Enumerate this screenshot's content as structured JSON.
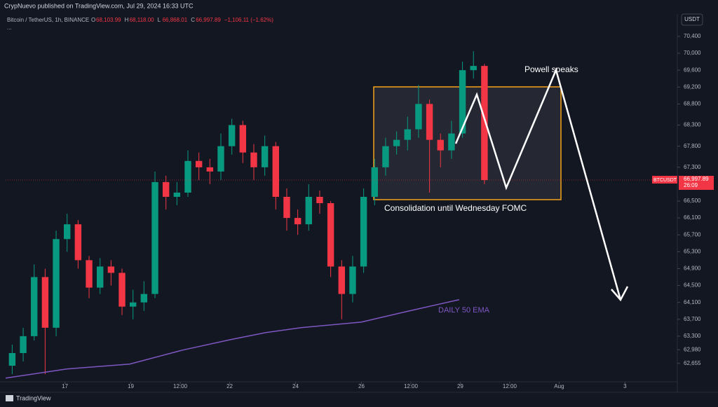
{
  "header": {
    "publisher": "CrypNuevo published on TradingView.com, Jul 29, 2024 16:33 UTC",
    "symbol": "Bitcoin / TetherUS, 1h, BINANCE",
    "ohlc": [
      {
        "key": "O",
        "text": "68,103.99"
      },
      {
        "key": "H",
        "text": "68,118.00"
      },
      {
        "key": "L",
        "text": "66,868.01"
      },
      {
        "key": "C",
        "text": "66,997.89"
      }
    ],
    "change": "−1,106.11 (−1.62%)",
    "more": "..."
  },
  "footer": {
    "brand": "TradingView"
  },
  "chart_data": {
    "type": "candlestick",
    "currency": "USDT",
    "up_color": "#089981",
    "down_color": "#f23645",
    "open": [
      62600,
      62900,
      63300,
      64700,
      63500,
      65600,
      65950,
      65100,
      64450,
      64950,
      64800,
      64000,
      64100,
      64300,
      66950,
      66600,
      66700,
      67450,
      67300,
      67200,
      67800,
      68300,
      67650,
      67300,
      67800,
      66600,
      66100,
      65950,
      66600,
      66450,
      64950,
      64300,
      64950,
      66600,
      67300,
      67800,
      67950,
      68200,
      68800,
      67950,
      67700,
      68100,
      69600,
      69700
    ],
    "high": [
      63100,
      63500,
      65000,
      64900,
      65800,
      66200,
      66050,
      65200,
      65150,
      65100,
      64900,
      64400,
      64600,
      67200,
      67100,
      66950,
      67700,
      67650,
      67500,
      68100,
      68450,
      68400,
      67850,
      68050,
      67900,
      66800,
      66300,
      66900,
      66750,
      66500,
      65100,
      65200,
      66800,
      67500,
      68000,
      68150,
      68500,
      69250,
      68900,
      68100,
      68400,
      69800,
      70050,
      69750
    ],
    "low": [
      62400,
      62700,
      63200,
      62400,
      63300,
      65300,
      64900,
      64200,
      64300,
      64500,
      63800,
      63700,
      63900,
      64200,
      66300,
      66400,
      66600,
      67000,
      66900,
      67000,
      67600,
      67400,
      67000,
      67100,
      66300,
      65800,
      65700,
      65800,
      66200,
      64700,
      63700,
      64100,
      64800,
      66400,
      67100,
      67600,
      67700,
      68000,
      66700,
      67300,
      67500,
      68000,
      69400,
      66900
    ],
    "close": [
      62900,
      63300,
      64700,
      63500,
      65600,
      65950,
      65100,
      64450,
      64950,
      64800,
      64000,
      64100,
      64300,
      66950,
      66600,
      66700,
      67450,
      67300,
      67200,
      67800,
      68300,
      67650,
      67300,
      67800,
      66600,
      66100,
      65950,
      66600,
      66450,
      64950,
      64300,
      64950,
      66600,
      67300,
      67800,
      67950,
      68200,
      68800,
      67950,
      67700,
      68100,
      69600,
      69700,
      66997.89
    ],
    "last_price": {
      "symbol": "BTCUSDT",
      "label": "66,997.89",
      "countdown": "26:09"
    },
    "series": [
      {
        "name": "DAILY 50 EMA",
        "color": "#7e57c2",
        "x": [
          -0.6,
          4.95,
          10.7,
          15.5,
          19.9,
          23.1,
          26.3,
          31.8,
          35.9,
          40.7
        ],
        "values": [
          62307,
          62523,
          62639,
          62970,
          63219,
          63385,
          63501,
          63634,
          63883,
          64165
        ]
      }
    ],
    "annotations": {
      "box_note": "Consolidation until Wednesday FOMC",
      "event": "Powell speaks"
    },
    "xlim": [
      -0.6,
      60.5
    ],
    "xticks": [
      {
        "value": 4.8,
        "label": "17"
      },
      {
        "value": 10.8,
        "label": "19"
      },
      {
        "value": 15.3,
        "label": "12:00"
      },
      {
        "value": 19.8,
        "label": "22"
      },
      {
        "value": 25.8,
        "label": "24"
      },
      {
        "value": 31.8,
        "label": "26"
      },
      {
        "value": 36.3,
        "label": "12:00"
      },
      {
        "value": 40.8,
        "label": "29"
      },
      {
        "value": 45.3,
        "label": "12:00"
      },
      {
        "value": 49.8,
        "label": "Aug"
      },
      {
        "value": 55.8,
        "label": "3"
      }
    ],
    "ylim": [
      62220,
      70930
    ],
    "yticks": [
      {
        "value": 70400,
        "label": "70,400"
      },
      {
        "value": 70000,
        "label": "70,000"
      },
      {
        "value": 69600,
        "label": "69,600"
      },
      {
        "value": 69200,
        "label": "69,200"
      },
      {
        "value": 68800,
        "label": "68,800"
      },
      {
        "value": 68300,
        "label": "68,300"
      },
      {
        "value": 67800,
        "label": "67,800"
      },
      {
        "value": 67300,
        "label": "67,300"
      },
      {
        "value": 66500,
        "label": "66,500"
      },
      {
        "value": 66100,
        "label": "66,100"
      },
      {
        "value": 65700,
        "label": "65,700"
      },
      {
        "value": 65300,
        "label": "65,300"
      },
      {
        "value": 64900,
        "label": "64,900"
      },
      {
        "value": 64500,
        "label": "64,500"
      },
      {
        "value": 64100,
        "label": "64,100"
      },
      {
        "value": 63700,
        "label": "63,700"
      },
      {
        "value": 63300,
        "label": "63,300"
      },
      {
        "value": 62980,
        "label": "62,980"
      },
      {
        "value": 62655,
        "label": "62,655"
      }
    ],
    "grid": false
  }
}
